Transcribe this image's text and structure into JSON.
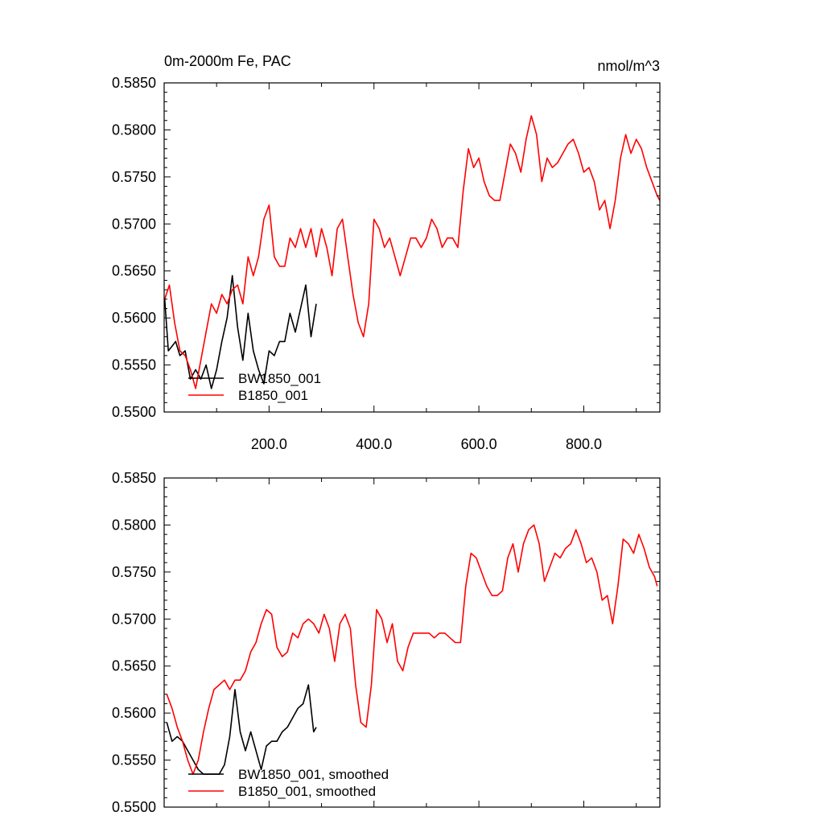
{
  "colors": {
    "black_series": "#000000",
    "red_series": "#ff0000"
  },
  "chart_data": [
    {
      "type": "line",
      "title": "0m-2000m Fe, PAC",
      "units": "nmol/m^3",
      "xlim": [
        0,
        945
      ],
      "ylim": [
        0.55,
        0.585
      ],
      "xticks": [
        {
          "value": 200,
          "label": "200.0"
        },
        {
          "value": 400,
          "label": "400.0"
        },
        {
          "value": 600,
          "label": "600.0"
        },
        {
          "value": 800,
          "label": "800.0"
        }
      ],
      "yticks": [
        {
          "value": 0.585,
          "label": "0.5850"
        },
        {
          "value": 0.58,
          "label": "0.5800"
        },
        {
          "value": 0.575,
          "label": "0.5750"
        },
        {
          "value": 0.57,
          "label": "0.5700"
        },
        {
          "value": 0.565,
          "label": "0.5650"
        },
        {
          "value": 0.56,
          "label": "0.5600"
        },
        {
          "value": 0.555,
          "label": "0.5550"
        },
        {
          "value": 0.55,
          "label": "0.5500"
        }
      ],
      "legend_position": "bottom-left",
      "series": [
        {
          "name": "BW1850_001",
          "color": "#000000",
          "x": [
            1,
            8,
            15,
            22,
            30,
            40,
            50,
            60,
            70,
            80,
            90,
            100,
            110,
            120,
            130,
            140,
            150,
            160,
            170,
            180,
            190,
            200,
            210,
            220,
            230,
            240,
            250,
            260,
            270,
            280,
            290
          ],
          "y": [
            0.562,
            0.5565,
            0.557,
            0.5575,
            0.556,
            0.5565,
            0.5535,
            0.5545,
            0.5535,
            0.555,
            0.5525,
            0.5545,
            0.5575,
            0.56,
            0.5645,
            0.559,
            0.5555,
            0.5605,
            0.5565,
            0.5545,
            0.553,
            0.5565,
            0.556,
            0.5575,
            0.5575,
            0.5605,
            0.5585,
            0.561,
            0.5635,
            0.558,
            0.5615
          ]
        },
        {
          "name": "B1850_001",
          "color": "#ff0000",
          "x": [
            1,
            10,
            20,
            30,
            40,
            50,
            60,
            70,
            80,
            90,
            100,
            110,
            120,
            130,
            140,
            150,
            160,
            170,
            180,
            190,
            200,
            210,
            220,
            230,
            240,
            250,
            260,
            270,
            280,
            290,
            300,
            310,
            320,
            330,
            340,
            350,
            360,
            370,
            380,
            390,
            400,
            410,
            420,
            430,
            440,
            450,
            460,
            470,
            480,
            490,
            500,
            510,
            520,
            530,
            540,
            550,
            560,
            570,
            580,
            590,
            600,
            610,
            620,
            630,
            640,
            650,
            660,
            670,
            680,
            690,
            700,
            710,
            720,
            730,
            740,
            750,
            760,
            770,
            780,
            790,
            800,
            810,
            820,
            830,
            840,
            850,
            860,
            870,
            880,
            890,
            900,
            910,
            920,
            930,
            940,
            945
          ],
          "y": [
            0.562,
            0.5635,
            0.5595,
            0.5565,
            0.556,
            0.5545,
            0.5525,
            0.5555,
            0.5585,
            0.5615,
            0.5605,
            0.5625,
            0.5615,
            0.563,
            0.5635,
            0.5615,
            0.5665,
            0.5645,
            0.5665,
            0.5705,
            0.572,
            0.5665,
            0.5655,
            0.5655,
            0.5685,
            0.5675,
            0.5695,
            0.5675,
            0.5695,
            0.5665,
            0.5695,
            0.5675,
            0.5645,
            0.5695,
            0.5705,
            0.5665,
            0.5625,
            0.5595,
            0.558,
            0.5615,
            0.5705,
            0.5695,
            0.5675,
            0.5685,
            0.5665,
            0.5645,
            0.5665,
            0.5685,
            0.5685,
            0.5675,
            0.5685,
            0.5705,
            0.5695,
            0.5675,
            0.5685,
            0.5685,
            0.5675,
            0.5735,
            0.578,
            0.576,
            0.577,
            0.5745,
            0.573,
            0.5725,
            0.5725,
            0.5755,
            0.5785,
            0.5775,
            0.5755,
            0.579,
            0.5815,
            0.5795,
            0.5745,
            0.577,
            0.576,
            0.5765,
            0.5775,
            0.5785,
            0.579,
            0.5775,
            0.5755,
            0.576,
            0.5745,
            0.5715,
            0.5725,
            0.5695,
            0.5725,
            0.577,
            0.5795,
            0.5775,
            0.579,
            0.578,
            0.576,
            0.5745,
            0.573,
            0.5725
          ]
        }
      ]
    },
    {
      "type": "line",
      "xlim": [
        0,
        945
      ],
      "ylim": [
        0.55,
        0.585
      ],
      "yticks": [
        {
          "value": 0.585,
          "label": "0.5850"
        },
        {
          "value": 0.58,
          "label": "0.5800"
        },
        {
          "value": 0.575,
          "label": "0.5750"
        },
        {
          "value": 0.57,
          "label": "0.5700"
        },
        {
          "value": 0.565,
          "label": "0.5650"
        },
        {
          "value": 0.56,
          "label": "0.5600"
        },
        {
          "value": 0.555,
          "label": "0.5550"
        },
        {
          "value": 0.55,
          "label": "0.5500"
        }
      ],
      "legend_position": "bottom-left",
      "series": [
        {
          "name": "BW1850_001, smoothed",
          "color": "#000000",
          "x": [
            5,
            15,
            25,
            35,
            45,
            55,
            65,
            75,
            85,
            95,
            105,
            115,
            125,
            135,
            145,
            155,
            165,
            175,
            185,
            195,
            205,
            215,
            225,
            235,
            245,
            255,
            265,
            275,
            285,
            290
          ],
          "y": [
            0.559,
            0.557,
            0.5575,
            0.557,
            0.556,
            0.555,
            0.554,
            0.5535,
            0.5535,
            0.5535,
            0.5535,
            0.5545,
            0.5575,
            0.5625,
            0.558,
            0.556,
            0.558,
            0.556,
            0.554,
            0.5565,
            0.557,
            0.557,
            0.558,
            0.5585,
            0.5595,
            0.5605,
            0.561,
            0.563,
            0.558,
            0.5585
          ]
        },
        {
          "name": "B1850_001, smoothed",
          "color": "#ff0000",
          "x": [
            5,
            15,
            25,
            35,
            45,
            55,
            65,
            75,
            85,
            95,
            105,
            115,
            125,
            135,
            145,
            155,
            165,
            175,
            185,
            195,
            205,
            215,
            225,
            235,
            245,
            255,
            265,
            275,
            285,
            295,
            305,
            315,
            325,
            335,
            345,
            355,
            365,
            375,
            385,
            395,
            405,
            415,
            425,
            435,
            445,
            455,
            465,
            475,
            485,
            495,
            505,
            515,
            525,
            535,
            545,
            555,
            565,
            575,
            585,
            595,
            605,
            615,
            625,
            635,
            645,
            655,
            665,
            675,
            685,
            695,
            705,
            715,
            725,
            735,
            745,
            755,
            765,
            775,
            785,
            795,
            805,
            815,
            825,
            835,
            845,
            855,
            865,
            875,
            885,
            895,
            905,
            915,
            925,
            935,
            940
          ],
          "y": [
            0.562,
            0.5605,
            0.5585,
            0.557,
            0.555,
            0.5535,
            0.555,
            0.558,
            0.5605,
            0.5625,
            0.563,
            0.5635,
            0.5625,
            0.5635,
            0.5635,
            0.5645,
            0.5665,
            0.5675,
            0.5695,
            0.571,
            0.5705,
            0.567,
            0.566,
            0.5665,
            0.5685,
            0.568,
            0.5695,
            0.57,
            0.5695,
            0.5685,
            0.5705,
            0.569,
            0.5655,
            0.5695,
            0.5705,
            0.569,
            0.563,
            0.559,
            0.5585,
            0.563,
            0.571,
            0.57,
            0.5675,
            0.5695,
            0.5655,
            0.5645,
            0.567,
            0.5685,
            0.5685,
            0.5685,
            0.5685,
            0.568,
            0.5685,
            0.5685,
            0.568,
            0.5675,
            0.5675,
            0.5735,
            0.577,
            0.5765,
            0.575,
            0.5735,
            0.5725,
            0.5725,
            0.573,
            0.5765,
            0.578,
            0.575,
            0.578,
            0.5795,
            0.58,
            0.578,
            0.574,
            0.5755,
            0.577,
            0.5765,
            0.5775,
            0.578,
            0.5795,
            0.578,
            0.576,
            0.5765,
            0.575,
            0.572,
            0.5725,
            0.5695,
            0.5735,
            0.5785,
            0.578,
            0.577,
            0.579,
            0.5775,
            0.5755,
            0.5745,
            0.5735
          ]
        }
      ]
    }
  ]
}
